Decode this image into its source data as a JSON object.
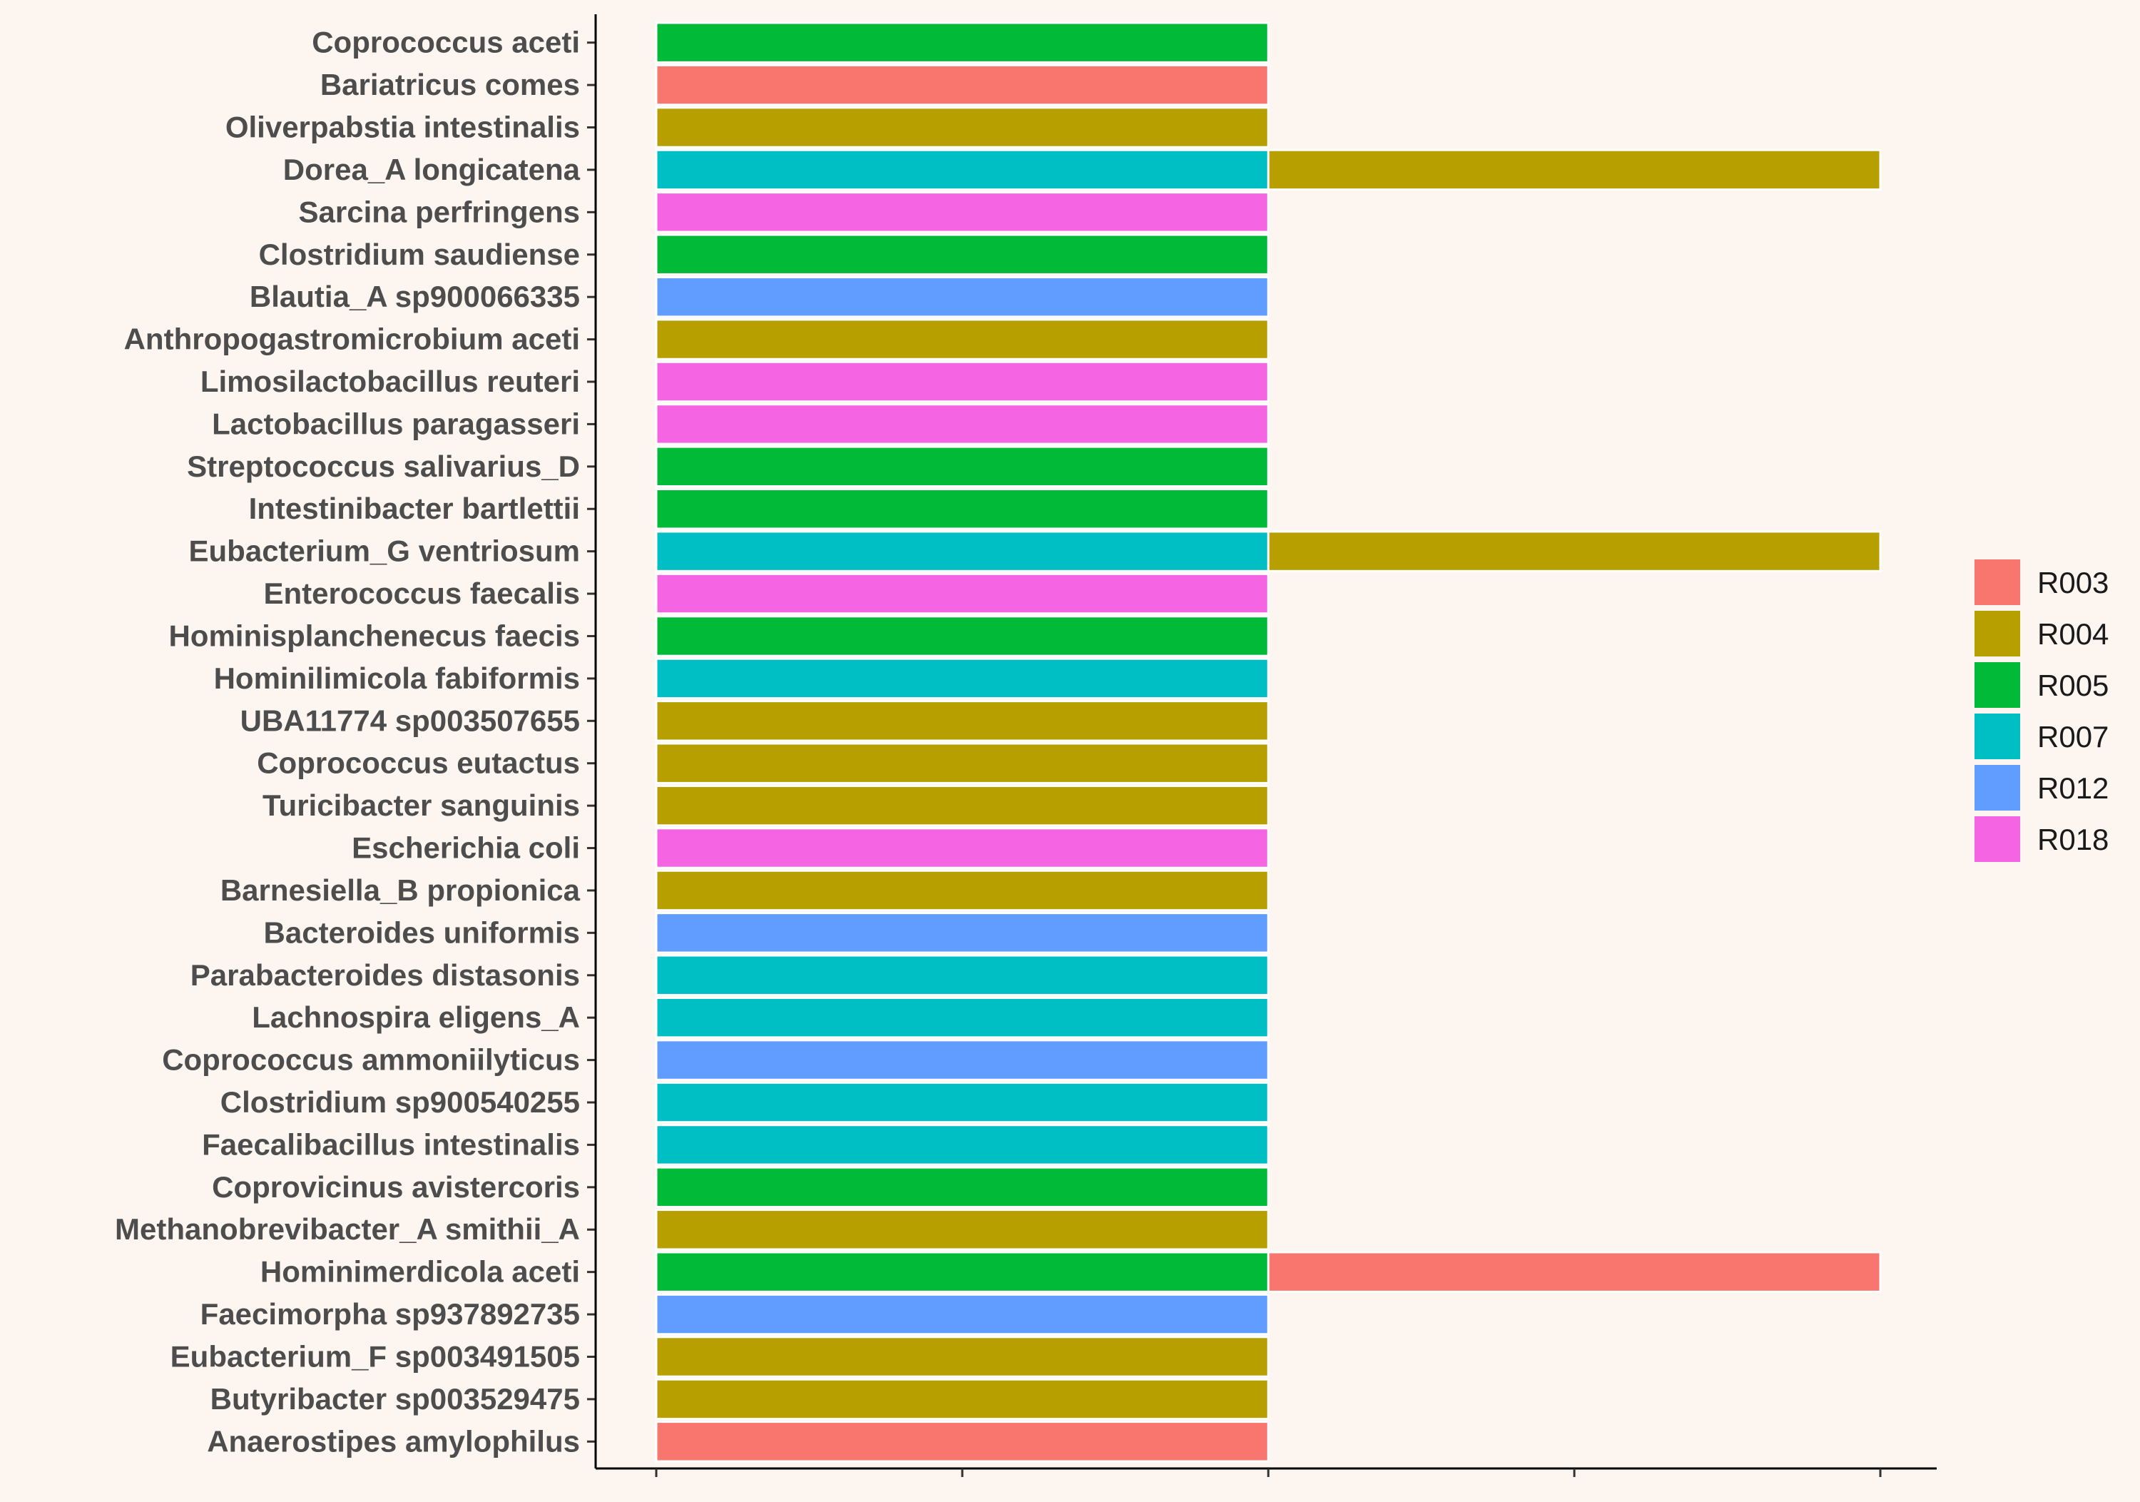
{
  "chart_data": {
    "type": "bar",
    "orientation": "horizontal",
    "stacked": true,
    "xlim": [
      0,
      2
    ],
    "grid": false,
    "legend_position": "right",
    "categories": [
      "Coprococcus aceti",
      "Bariatricus comes",
      "Oliverpabstia intestinalis",
      "Dorea_A longicatena",
      "Sarcina perfringens",
      "Clostridium saudiense",
      "Blautia_A sp900066335",
      "Anthropogastromicrobium aceti",
      "Limosilactobacillus reuteri",
      "Lactobacillus paragasseri",
      "Streptococcus salivarius_D",
      "Intestinibacter bartlettii",
      "Eubacterium_G ventriosum",
      "Enterococcus faecalis",
      "Hominisplanchenecus faecis",
      "Hominilimicola fabiformis",
      "UBA11774 sp003507655",
      "Coprococcus eutactus",
      "Turicibacter sanguinis",
      "Escherichia coli",
      "Barnesiella_B propionica",
      "Bacteroides uniformis",
      "Parabacteroides distasonis",
      "Lachnospira eligens_A",
      "Coprococcus ammoniilyticus",
      "Clostridium sp900540255",
      "Faecalibacillus intestinalis",
      "Coprovicinus avistercoris",
      "Methanobrevibacter_A smithii_A",
      "Hominimerdicola aceti",
      "Faecimorpha sp937892735",
      "Eubacterium_F sp003491505",
      "Butyribacter sp003529475",
      "Anaerostipes amylophilus"
    ],
    "series": [
      {
        "name": "R003",
        "color": "#f8766d",
        "values": [
          0,
          1,
          0,
          0,
          0,
          0,
          0,
          0,
          0,
          0,
          0,
          0,
          0,
          0,
          0,
          0,
          0,
          0,
          0,
          0,
          0,
          0,
          0,
          0,
          0,
          0,
          0,
          0,
          0,
          1,
          0,
          0,
          0,
          1
        ]
      },
      {
        "name": "R004",
        "color": "#b79f00",
        "values": [
          0,
          0,
          1,
          1,
          0,
          0,
          0,
          1,
          0,
          0,
          0,
          0,
          1,
          0,
          0,
          0,
          1,
          1,
          1,
          0,
          1,
          0,
          0,
          0,
          0,
          0,
          0,
          0,
          1,
          0,
          0,
          1,
          1,
          0
        ]
      },
      {
        "name": "R005",
        "color": "#00ba38",
        "values": [
          1,
          0,
          0,
          0,
          0,
          1,
          0,
          0,
          0,
          0,
          1,
          1,
          0,
          0,
          1,
          0,
          0,
          0,
          0,
          0,
          0,
          0,
          0,
          0,
          0,
          0,
          0,
          1,
          0,
          1,
          0,
          0,
          0,
          0
        ]
      },
      {
        "name": "R007",
        "color": "#00bfc4",
        "values": [
          0,
          0,
          0,
          1,
          0,
          0,
          0,
          0,
          0,
          0,
          0,
          0,
          1,
          0,
          0,
          1,
          0,
          0,
          0,
          0,
          0,
          0,
          1,
          1,
          0,
          1,
          1,
          0,
          0,
          0,
          0,
          0,
          0,
          0
        ]
      },
      {
        "name": "R012",
        "color": "#619cff",
        "values": [
          0,
          0,
          0,
          0,
          0,
          0,
          1,
          0,
          0,
          0,
          0,
          0,
          0,
          0,
          0,
          0,
          0,
          0,
          0,
          0,
          0,
          1,
          0,
          0,
          1,
          0,
          0,
          0,
          0,
          0,
          1,
          0,
          0,
          0
        ]
      },
      {
        "name": "R018",
        "color": "#f564e3",
        "values": [
          0,
          0,
          0,
          0,
          1,
          0,
          0,
          0,
          1,
          1,
          0,
          0,
          0,
          1,
          0,
          0,
          0,
          0,
          0,
          1,
          0,
          0,
          0,
          0,
          0,
          0,
          0,
          0,
          0,
          0,
          0,
          0,
          0,
          0
        ]
      }
    ],
    "stack_order": {
      "Dorea_A longicatena": [
        "R007",
        "R004"
      ],
      "Eubacterium_G ventriosum": [
        "R007",
        "R004"
      ],
      "Hominimerdicola aceti": [
        "R005",
        "R003"
      ]
    }
  }
}
